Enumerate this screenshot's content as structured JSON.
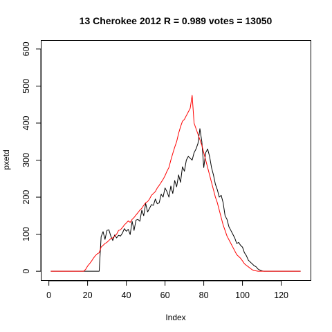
{
  "chart_data": {
    "type": "line",
    "title": "13 Cherokee 2012 R = 0.989 votes = 13050",
    "xlabel": "Index",
    "ylabel": "pxetd",
    "xlim": [
      1,
      130
    ],
    "ylim": [
      0,
      600
    ],
    "xticks": [
      0,
      20,
      40,
      60,
      80,
      100,
      120
    ],
    "yticks": [
      0,
      100,
      200,
      300,
      400,
      500,
      600
    ],
    "xtick_labels": [
      "0",
      "20",
      "40",
      "60",
      "80",
      "100",
      "120"
    ],
    "ytick_labels": [
      "0",
      "100",
      "200",
      "300",
      "400",
      "500",
      "600"
    ],
    "grid": false,
    "legend": "none",
    "series": [
      {
        "color": "#000000",
        "x": [
          1,
          2,
          3,
          4,
          5,
          6,
          7,
          8,
          9,
          10,
          11,
          12,
          13,
          14,
          15,
          16,
          17,
          18,
          19,
          20,
          21,
          22,
          23,
          24,
          25,
          26,
          27,
          28,
          29,
          30,
          31,
          32,
          33,
          34,
          35,
          36,
          37,
          38,
          39,
          40,
          41,
          42,
          43,
          44,
          45,
          46,
          47,
          48,
          49,
          50,
          51,
          52,
          53,
          54,
          55,
          56,
          57,
          58,
          59,
          60,
          61,
          62,
          63,
          64,
          65,
          66,
          67,
          68,
          69,
          70,
          71,
          72,
          73,
          74,
          75,
          76,
          77,
          78,
          79,
          80,
          81,
          82,
          83,
          84,
          85,
          86,
          87,
          88,
          89,
          90,
          91,
          92,
          93,
          94,
          95,
          96,
          97,
          98,
          99,
          100,
          101,
          102,
          103,
          104,
          105,
          106,
          107,
          108,
          109,
          110,
          111,
          112,
          113,
          114,
          115,
          116,
          117,
          118,
          119,
          120,
          121,
          122,
          123,
          124,
          125,
          126,
          127,
          128,
          129,
          130
        ],
        "values": [
          0,
          0,
          0,
          0,
          0,
          0,
          0,
          0,
          0,
          0,
          0,
          0,
          0,
          0,
          0,
          0,
          0,
          0,
          0,
          0,
          0,
          0,
          0,
          0,
          0,
          0,
          93,
          107,
          86,
          110,
          112,
          95,
          83,
          98,
          90,
          97,
          95,
          103,
          115,
          108,
          113,
          99,
          135,
          110,
          138,
          140,
          135,
          165,
          150,
          183,
          160,
          170,
          180,
          178,
          195,
          182,
          185,
          208,
          200,
          225,
          215,
          200,
          230,
          210,
          245,
          228,
          260,
          240,
          282,
          270,
          300,
          310,
          305,
          300,
          320,
          330,
          345,
          385,
          350,
          280,
          320,
          330,
          310,
          280,
          260,
          235,
          220,
          200,
          205,
          185,
          150,
          140,
          120,
          110,
          100,
          90,
          75,
          78,
          70,
          65,
          50,
          42,
          30,
          25,
          20,
          15,
          12,
          6,
          3,
          1,
          0,
          0,
          0,
          0,
          0,
          0,
          0,
          0,
          0,
          0,
          0,
          0,
          0,
          0,
          0,
          0,
          0,
          0,
          0,
          0
        ]
      },
      {
        "color": "#ff0000",
        "x": [
          1,
          2,
          3,
          4,
          5,
          6,
          7,
          8,
          9,
          10,
          11,
          12,
          13,
          14,
          15,
          16,
          17,
          18,
          19,
          20,
          21,
          22,
          23,
          24,
          25,
          26,
          27,
          28,
          29,
          30,
          31,
          32,
          33,
          34,
          35,
          36,
          37,
          38,
          39,
          40,
          41,
          42,
          43,
          44,
          45,
          46,
          47,
          48,
          49,
          50,
          51,
          52,
          53,
          54,
          55,
          56,
          57,
          58,
          59,
          60,
          61,
          62,
          63,
          64,
          65,
          66,
          67,
          68,
          69,
          70,
          71,
          72,
          73,
          74,
          75,
          76,
          77,
          78,
          79,
          80,
          81,
          82,
          83,
          84,
          85,
          86,
          87,
          88,
          89,
          90,
          91,
          92,
          93,
          94,
          95,
          96,
          97,
          98,
          99,
          100,
          101,
          102,
          103,
          104,
          105,
          106,
          107,
          108,
          109,
          110,
          111,
          112,
          113,
          114,
          115,
          116,
          117,
          118,
          119,
          120,
          121,
          122,
          123,
          124,
          125,
          126,
          127,
          128,
          129,
          130
        ],
        "values": [
          0,
          0,
          0,
          0,
          0,
          0,
          0,
          0,
          0,
          0,
          0,
          0,
          0,
          0,
          0,
          0,
          0,
          0,
          5,
          14,
          20,
          27,
          35,
          42,
          47,
          50,
          65,
          70,
          75,
          78,
          83,
          88,
          90,
          95,
          100,
          110,
          112,
          118,
          125,
          130,
          136,
          132,
          140,
          145,
          152,
          158,
          165,
          170,
          178,
          185,
          188,
          195,
          205,
          210,
          215,
          225,
          232,
          240,
          248,
          258,
          270,
          280,
          300,
          318,
          335,
          350,
          372,
          390,
          405,
          410,
          420,
          430,
          440,
          475,
          400,
          385,
          370,
          355,
          340,
          320,
          300,
          280,
          260,
          240,
          220,
          200,
          185,
          165,
          145,
          125,
          110,
          95,
          85,
          75,
          65,
          55,
          45,
          40,
          35,
          28,
          20,
          16,
          12,
          8,
          4,
          2,
          1,
          0,
          0,
          0,
          0,
          0,
          0,
          0,
          0,
          0,
          0,
          0,
          0,
          0,
          0,
          0,
          0,
          0,
          0,
          0,
          0,
          0,
          0,
          0
        ]
      }
    ]
  }
}
